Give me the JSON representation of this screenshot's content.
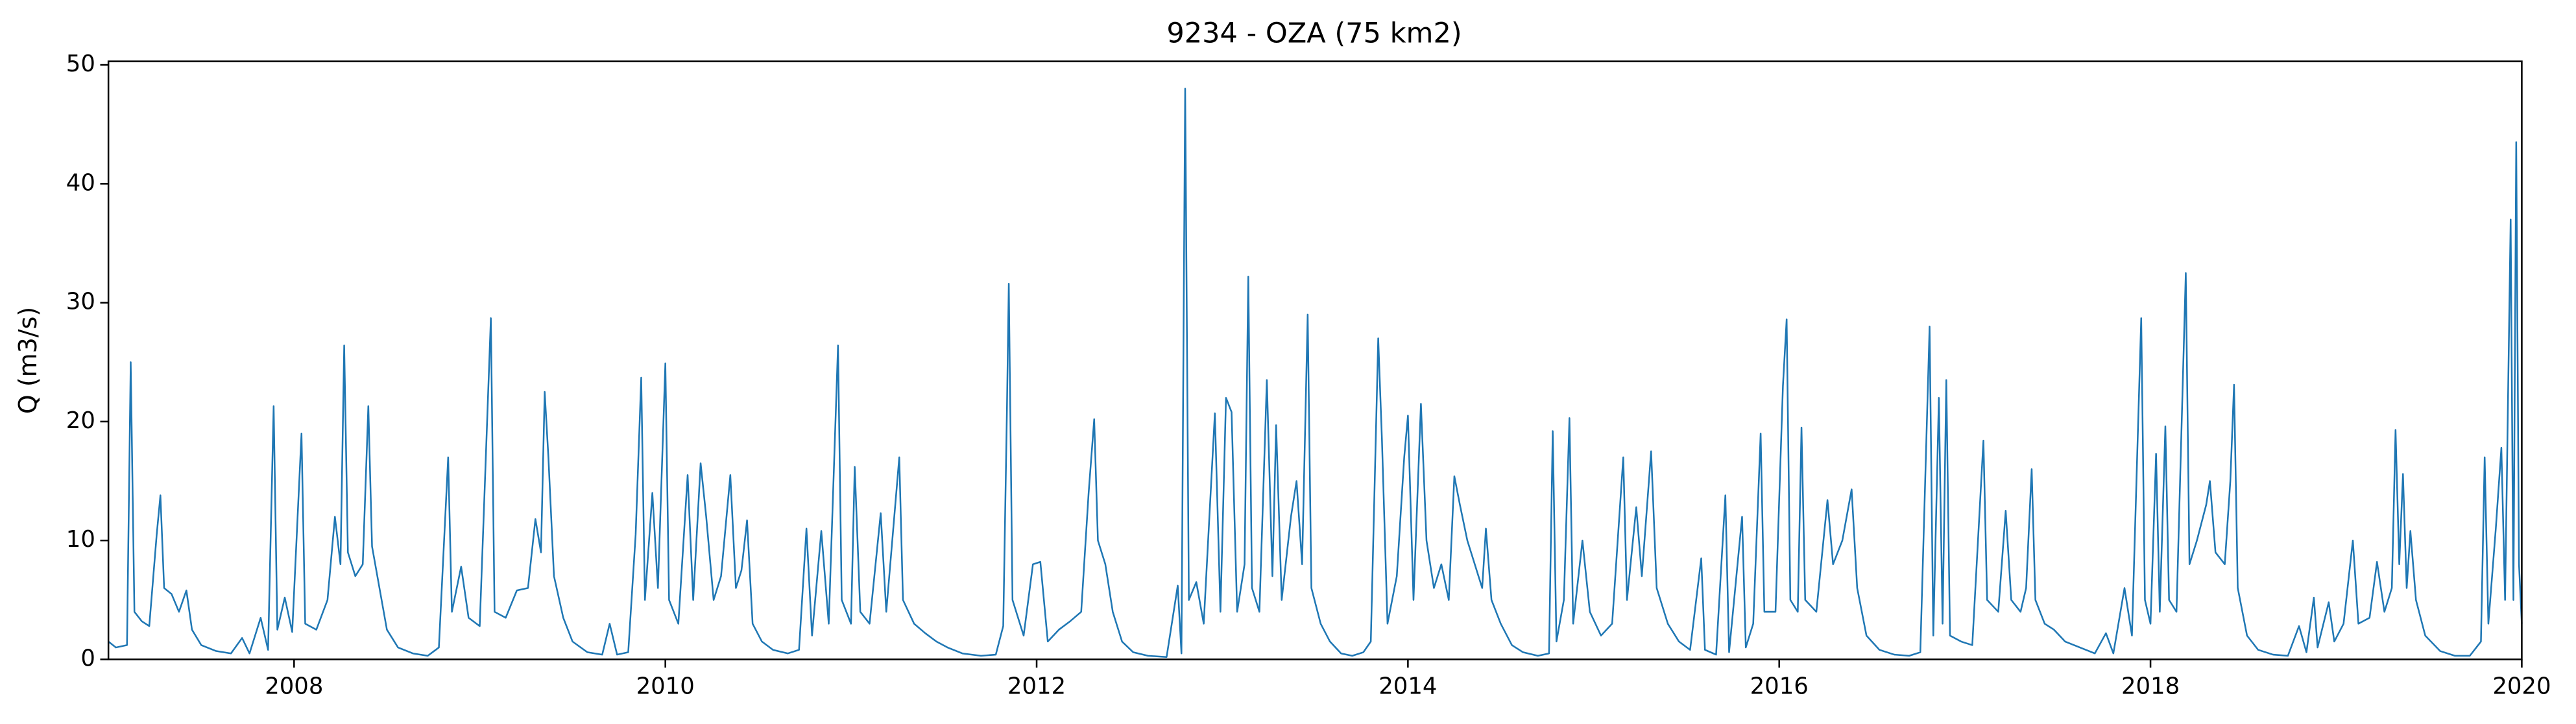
{
  "chart_data": {
    "type": "line",
    "title": "9234 - OZA (75 km2)",
    "ylabel": "Q (m3/s)",
    "color": "#1f77b4",
    "xlim": [
      2007,
      2020
    ],
    "xticks": [
      2008,
      2010,
      2012,
      2014,
      2016,
      2018,
      2020
    ],
    "ylim": [
      0,
      50.3
    ],
    "yticks": [
      0,
      10,
      20,
      30,
      40,
      50
    ],
    "x": [
      2007.0,
      2007.04,
      2007.1,
      2007.12,
      2007.14,
      2007.18,
      2007.22,
      2007.26,
      2007.28,
      2007.3,
      2007.34,
      2007.38,
      2007.42,
      2007.45,
      2007.5,
      2007.58,
      2007.66,
      2007.72,
      2007.76,
      2007.82,
      2007.86,
      2007.89,
      2007.91,
      2007.95,
      2007.99,
      2008.04,
      2008.06,
      2008.12,
      2008.18,
      2008.22,
      2008.25,
      2008.27,
      2008.29,
      2008.33,
      2008.37,
      2008.4,
      2008.42,
      2008.46,
      2008.5,
      2008.56,
      2008.64,
      2008.72,
      2008.78,
      2008.83,
      2008.85,
      2008.9,
      2008.94,
      2009.0,
      2009.06,
      2009.08,
      2009.14,
      2009.2,
      2009.26,
      2009.3,
      2009.33,
      2009.35,
      2009.37,
      2009.4,
      2009.45,
      2009.5,
      2009.58,
      2009.66,
      2009.7,
      2009.74,
      2009.8,
      2009.84,
      2009.87,
      2009.89,
      2009.93,
      2009.96,
      2010.0,
      2010.02,
      2010.07,
      2010.12,
      2010.15,
      2010.19,
      2010.22,
      2010.26,
      2010.3,
      2010.35,
      2010.38,
      2010.41,
      2010.44,
      2010.47,
      2010.52,
      2010.58,
      2010.66,
      2010.72,
      2010.76,
      2010.79,
      2010.84,
      2010.88,
      2010.93,
      2010.95,
      2011.0,
      2011.02,
      2011.05,
      2011.1,
      2011.16,
      2011.19,
      2011.26,
      2011.28,
      2011.34,
      2011.4,
      2011.46,
      2011.52,
      2011.6,
      2011.7,
      2011.78,
      2011.82,
      2011.84,
      2011.85,
      2011.87,
      2011.93,
      2011.98,
      2012.02,
      2012.06,
      2012.12,
      2012.18,
      2012.24,
      2012.28,
      2012.31,
      2012.33,
      2012.37,
      2012.41,
      2012.46,
      2012.52,
      2012.6,
      2012.7,
      2012.76,
      2012.78,
      2012.8,
      2012.82,
      2012.86,
      2012.9,
      2012.96,
      2012.99,
      2013.02,
      2013.05,
      2013.08,
      2013.12,
      2013.14,
      2013.16,
      2013.2,
      2013.24,
      2013.27,
      2013.29,
      2013.32,
      2013.37,
      2013.4,
      2013.43,
      2013.46,
      2013.48,
      2013.53,
      2013.58,
      2013.64,
      2013.7,
      2013.76,
      2013.8,
      2013.84,
      2013.86,
      2013.89,
      2013.94,
      2013.98,
      2014.0,
      2014.03,
      2014.07,
      2014.1,
      2014.14,
      2014.18,
      2014.22,
      2014.25,
      2014.28,
      2014.32,
      2014.36,
      2014.4,
      2014.42,
      2014.45,
      2014.5,
      2014.56,
      2014.62,
      2014.7,
      2014.76,
      2014.78,
      2014.8,
      2014.84,
      2014.87,
      2014.89,
      2014.94,
      2014.98,
      2015.04,
      2015.1,
      2015.16,
      2015.18,
      2015.23,
      2015.26,
      2015.31,
      2015.34,
      2015.4,
      2015.46,
      2015.52,
      2015.58,
      2015.6,
      2015.66,
      2015.71,
      2015.73,
      2015.8,
      2015.82,
      2015.86,
      2015.9,
      2015.92,
      2015.98,
      2016.02,
      2016.04,
      2016.06,
      2016.1,
      2016.12,
      2016.14,
      2016.2,
      2016.26,
      2016.29,
      2016.34,
      2016.39,
      2016.42,
      2016.47,
      2016.54,
      2016.62,
      2016.7,
      2016.76,
      2016.81,
      2016.83,
      2016.86,
      2016.88,
      2016.9,
      2016.92,
      2016.98,
      2017.04,
      2017.1,
      2017.12,
      2017.18,
      2017.22,
      2017.25,
      2017.3,
      2017.33,
      2017.36,
      2017.38,
      2017.43,
      2017.48,
      2017.54,
      2017.62,
      2017.7,
      2017.76,
      2017.8,
      2017.86,
      2017.9,
      2017.95,
      2017.97,
      2018.0,
      2018.03,
      2018.05,
      2018.08,
      2018.1,
      2018.14,
      2018.19,
      2018.21,
      2018.25,
      2018.3,
      2018.32,
      2018.35,
      2018.4,
      2018.43,
      2018.45,
      2018.47,
      2018.52,
      2018.58,
      2018.66,
      2018.74,
      2018.8,
      2018.84,
      2018.88,
      2018.9,
      2018.96,
      2018.99,
      2019.04,
      2019.09,
      2019.12,
      2019.18,
      2019.22,
      2019.26,
      2019.3,
      2019.32,
      2019.34,
      2019.36,
      2019.38,
      2019.4,
      2019.43,
      2019.48,
      2019.56,
      2019.64,
      2019.72,
      2019.78,
      2019.8,
      2019.82,
      2019.86,
      2019.89,
      2019.91,
      2019.94,
      2019.955,
      2019.97,
      2019.985,
      2020.0
    ],
    "values": [
      1.5,
      1.0,
      1.2,
      25,
      4,
      3.2,
      2.8,
      10.5,
      13.8,
      6,
      5.5,
      4,
      5.8,
      2.5,
      1.2,
      0.7,
      0.5,
      1.8,
      0.5,
      3.5,
      0.8,
      21.3,
      2.5,
      5.2,
      2.3,
      19,
      3,
      2.5,
      5,
      12,
      8,
      26.4,
      9,
      7,
      8,
      21.3,
      9.5,
      6,
      2.5,
      1,
      0.5,
      0.3,
      1,
      17,
      4,
      7.8,
      3.5,
      2.8,
      28.7,
      4,
      3.5,
      5.8,
      6,
      11.8,
      9,
      22.5,
      17,
      7,
      3.5,
      1.5,
      0.6,
      0.4,
      3,
      0.4,
      0.6,
      10.5,
      23.7,
      5,
      14,
      6,
      24.9,
      5,
      3,
      15.5,
      5,
      16.5,
      12,
      5,
      7,
      15.5,
      6,
      7.5,
      11.7,
      3,
      1.5,
      0.8,
      0.5,
      0.8,
      11,
      2,
      10.8,
      3,
      26.4,
      5,
      3,
      16.2,
      4,
      3,
      12.3,
      4,
      17,
      5,
      3,
      2.2,
      1.5,
      1,
      0.5,
      0.3,
      0.4,
      2.8,
      21,
      31.6,
      5,
      2,
      8,
      8.2,
      1.5,
      2.5,
      3.2,
      4,
      14,
      20.2,
      10,
      8,
      4,
      1.5,
      0.6,
      0.3,
      0.2,
      6.2,
      0.5,
      48,
      5,
      6.5,
      3,
      20.7,
      4,
      22,
      20.8,
      4,
      8,
      32.2,
      6,
      4,
      23.5,
      7,
      19.7,
      5,
      12,
      15,
      8,
      29,
      6,
      3,
      1.5,
      0.5,
      0.3,
      0.6,
      1.5,
      27,
      18.5,
      3,
      7,
      17,
      20.5,
      5,
      21.5,
      10,
      6,
      8,
      5,
      15.4,
      13,
      10,
      8,
      6,
      11,
      5,
      3,
      1.2,
      0.6,
      0.3,
      0.5,
      19.2,
      1.5,
      5,
      20.3,
      3,
      10,
      4,
      2,
      3,
      17,
      5,
      12.8,
      7,
      17.5,
      6,
      3,
      1.5,
      0.8,
      8.5,
      0.8,
      0.4,
      13.8,
      0.6,
      12,
      1,
      3,
      19,
      4,
      4,
      23,
      28.6,
      5,
      4,
      19.5,
      5,
      4,
      13.4,
      8,
      10,
      14.3,
      6,
      2,
      0.8,
      0.4,
      0.3,
      0.6,
      28,
      2,
      22,
      3,
      23.5,
      2,
      1.5,
      1.2,
      18.4,
      5,
      4,
      12.5,
      5,
      4,
      6,
      16,
      5,
      3,
      2.5,
      1.5,
      1,
      0.5,
      2.2,
      0.5,
      6,
      2,
      28.7,
      5,
      3,
      17.3,
      4,
      19.6,
      5,
      4,
      32.5,
      8,
      10,
      13,
      15,
      9,
      8,
      15,
      23.1,
      6,
      2,
      0.8,
      0.4,
      0.3,
      2.8,
      0.6,
      5.2,
      1,
      4.8,
      1.5,
      3,
      10,
      3,
      3.5,
      8.2,
      4,
      6,
      19.3,
      8,
      15.6,
      6,
      10.8,
      5,
      2,
      0.7,
      0.3,
      0.3,
      1.5,
      17,
      3,
      11,
      17.8,
      5,
      37,
      5,
      43.5,
      8,
      3
    ]
  }
}
